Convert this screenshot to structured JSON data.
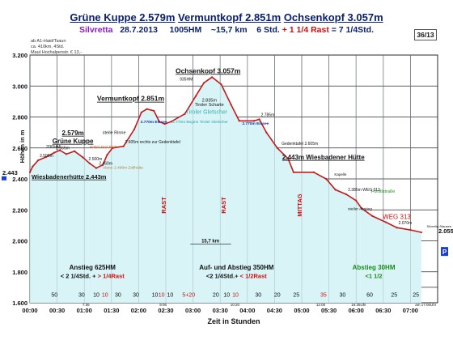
{
  "chart_data": {
    "type": "area",
    "title_parts": [
      "Grüne Kuppe 2.579m",
      "Vermuntkopf 2.851m",
      "Ochsenkopf 3.057m"
    ],
    "subtitle": {
      "region": "Silvretta",
      "date": "28.7.2013",
      "hm": "1005HM",
      "km": "~15,7 km",
      "hours": "6 Std.",
      "rast": "+ 1 1/4 Rast",
      "total": "= 7 1/4Std."
    },
    "page_number": "36/13",
    "info_box": [
      "ab A1-Haid/Tsaun",
      "ca. 410km, 4Std.",
      "Maut Hochalpenstr. € 13,-"
    ],
    "xlabel": "Zeit in Stunden",
    "ylabel": "Höhen in m",
    "ylim": [
      1600,
      3200
    ],
    "xlim": [
      0,
      7.5
    ],
    "y_ticks": [
      "1.600",
      "1.800",
      "2.000",
      "2.200",
      "2.400",
      "2.600",
      "2.800",
      "3.000",
      "3.200"
    ],
    "x_ticks": [
      "00:00",
      "00:30",
      "01:00",
      "01:30",
      "02:00",
      "02:30",
      "03:00",
      "03:30",
      "04:00",
      "04:30",
      "05:00",
      "05:30",
      "06:00",
      "06:30",
      "07:00"
    ],
    "start_label": "2.443",
    "end_label": "2.055",
    "end_label_p": "P",
    "profile": [
      {
        "x": 0.0,
        "y": 2443
      },
      {
        "x": 0.05,
        "y": 2480
      },
      {
        "x": 0.15,
        "y": 2520
      },
      {
        "x": 0.3,
        "y": 2542
      },
      {
        "x": 0.45,
        "y": 2570
      },
      {
        "x": 0.55,
        "y": 2585
      },
      {
        "x": 0.67,
        "y": 2560
      },
      {
        "x": 0.82,
        "y": 2579
      },
      {
        "x": 0.97,
        "y": 2540
      },
      {
        "x": 1.1,
        "y": 2500
      },
      {
        "x": 1.22,
        "y": 2470
      },
      {
        "x": 1.34,
        "y": 2490
      },
      {
        "x": 1.42,
        "y": 2555
      },
      {
        "x": 1.52,
        "y": 2600
      },
      {
        "x": 1.72,
        "y": 2610
      },
      {
        "x": 1.92,
        "y": 2720
      },
      {
        "x": 2.05,
        "y": 2830
      },
      {
        "x": 2.15,
        "y": 2851
      },
      {
        "x": 2.28,
        "y": 2840
      },
      {
        "x": 2.38,
        "y": 2770
      },
      {
        "x": 2.48,
        "y": 2755
      },
      {
        "x": 2.6,
        "y": 2770
      },
      {
        "x": 2.85,
        "y": 2820
      },
      {
        "x": 3.05,
        "y": 2935
      },
      {
        "x": 3.2,
        "y": 3020
      },
      {
        "x": 3.35,
        "y": 3057
      },
      {
        "x": 3.52,
        "y": 3010
      },
      {
        "x": 3.7,
        "y": 2880
      },
      {
        "x": 3.85,
        "y": 2775
      },
      {
        "x": 4.12,
        "y": 2775
      },
      {
        "x": 4.22,
        "y": 2785
      },
      {
        "x": 4.35,
        "y": 2700
      },
      {
        "x": 4.55,
        "y": 2600
      },
      {
        "x": 4.75,
        "y": 2530
      },
      {
        "x": 4.85,
        "y": 2443
      },
      {
        "x": 5.22,
        "y": 2443
      },
      {
        "x": 5.45,
        "y": 2400
      },
      {
        "x": 5.62,
        "y": 2330
      },
      {
        "x": 5.82,
        "y": 2300
      },
      {
        "x": 6.0,
        "y": 2260
      },
      {
        "x": 6.1,
        "y": 2210
      },
      {
        "x": 6.3,
        "y": 2160
      },
      {
        "x": 6.55,
        "y": 2120
      },
      {
        "x": 6.75,
        "y": 2085
      },
      {
        "x": 7.0,
        "y": 2070
      },
      {
        "x": 7.2,
        "y": 2055
      }
    ],
    "summits": [
      {
        "name": "2.579m",
        "name2": "Grüne Kuppe",
        "x": 0.82,
        "y": 2579
      },
      {
        "name": "Vermuntkopf 2.851m",
        "x": 2.15,
        "y": 2851
      },
      {
        "name": "Ochsenkopf 3.057m",
        "sub": "935HM",
        "x": 3.35,
        "y": 3057
      },
      {
        "name": "2.443m  Wiesbadener  Hütte",
        "x": 5.22,
        "y": 2443
      }
    ],
    "point_labels": [
      {
        "text": "2.500m",
        "x": 0.15,
        "y": 2520
      },
      {
        "text": "2.565m",
        "x": 0.45,
        "y": 2570
      },
      {
        "text": "2.500m",
        "x": 1.05,
        "y": 2500
      },
      {
        "text": "2.460m",
        "x": 1.24,
        "y": 2470
      },
      {
        "text": "2.605m rechts zur Gedenktafel",
        "x": 1.72,
        "y": 2610
      },
      {
        "text": "2.785m",
        "x": 4.22,
        "y": 2785
      },
      {
        "text": "Gedenktafel 2.605m",
        "x": 4.6,
        "y": 2600
      },
      {
        "text": "2.385m WEG 313",
        "x": 5.82,
        "y": 2300
      },
      {
        "text": "WEG 313",
        "x": 6.55,
        "y": 2120
      },
      {
        "text": "2.070m",
        "x": 6.75,
        "y": 2085
      }
    ],
    "small_notes": [
      "Wiesbadenerhütte 2.443m",
      "200HM",
      "steile Rinne",
      "Tiroler Scharte",
      "2.835m",
      "Tiroler Gletscher",
      "2.770m Eissee",
      "2.770m Beginn Tiroler Gletscher",
      "2.770m Eissee",
      "Abzw. 2.490m Zollhütte",
      "Hohes Rad Blick",
      "Forstlstraße",
      "steiler Abstieg",
      "Kapelle",
      "Silvretta-Stausee"
    ],
    "rast_markers": [
      {
        "x": 2.5,
        "label": "RAST"
      },
      {
        "x": 3.6,
        "label": "RAST"
      },
      {
        "x": 5.0,
        "label": "MITTAG"
      }
    ],
    "phase_labels": [
      {
        "line1": "Anstieg 625HM",
        "line2": "< 2 1/4Std. +",
        "line2b": "> 1/4Rast",
        "x_from": 0.0,
        "x_to": 2.3
      },
      {
        "line1": "Auf- und Abstieg 350HM",
        "line2": "<2 1/4Std.+",
        "line2b": "< 1/2Rast",
        "x_from": 2.3,
        "x_to": 5.3
      },
      {
        "line1": "Abstieg 30HM",
        "line2": "<1 1/2",
        "line2b": "",
        "x_from": 5.3,
        "x_to": 7.35
      }
    ],
    "distance_label": "15,7 km",
    "time_labels": [
      "00:00",
      "7:36",
      "9:06",
      "10:20",
      "12:00",
      "16:35Uhr",
      "am 17:00Uhr"
    ],
    "segment_minutes": [
      "50",
      "30",
      "10",
      "10",
      "30",
      "30",
      "10",
      "10",
      "10",
      "5+20",
      "20",
      "10",
      "10",
      "30",
      "20",
      "25",
      "35",
      "30",
      "60",
      "25",
      "25"
    ],
    "colors": {
      "line": "#c41a1a",
      "fill": "#d8f4f6",
      "grid": "#2a2a2a",
      "blue_text": "#1a2fa8",
      "green_text": "#1a8a1a",
      "red_text": "#d01010",
      "title": "#0a1f6b"
    }
  }
}
